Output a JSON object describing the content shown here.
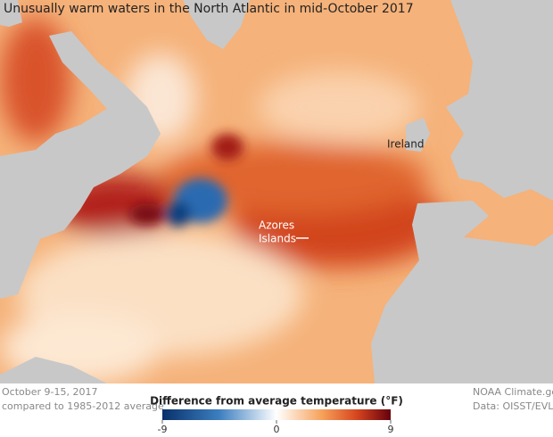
{
  "title": "Unusually warm waters in the North Atlantic in mid-October 2017",
  "map_labels": {
    "ireland": "Ireland",
    "azores": [
      "Azores",
      "Islands"
    ]
  },
  "footer": {
    "dates": "October 9-15, 2017",
    "baseline": "compared to 1985-2012 average",
    "credit": "NOAA Climate.go",
    "source": "Data: OISST/EVL"
  },
  "legend": {
    "title": "Difference from average temperature (°F)",
    "range": [
      -9,
      9
    ],
    "ticks": [
      -9,
      0,
      9
    ]
  }
}
